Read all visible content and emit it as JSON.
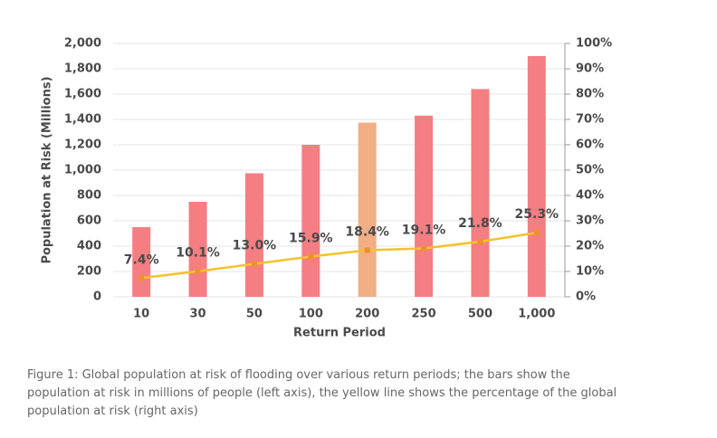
{
  "chart_data": {
    "type": "bar",
    "categories": [
      "10",
      "30",
      "50",
      "100",
      "200",
      "250",
      "500",
      "1,000"
    ],
    "series": [
      {
        "type": "bar",
        "values": [
          550,
          750,
          975,
          1200,
          1375,
          1430,
          1640,
          1900
        ],
        "colors": [
          "#f57e82",
          "#f57e82",
          "#f57e82",
          "#f57e82",
          "#f2ae84",
          "#f57e82",
          "#f57e82",
          "#f57e82"
        ]
      },
      {
        "type": "line",
        "axis": "y2",
        "values": [
          7.4,
          10.1,
          13.0,
          15.9,
          18.4,
          19.1,
          21.8,
          25.3
        ],
        "value_labels": [
          "7.4%",
          "10.1%",
          "13.0%",
          "15.9%",
          "18.4%",
          "19.1%",
          "21.8%",
          "25.3%"
        ],
        "color": "#f5c22c",
        "marker_color": "#f0902a"
      }
    ],
    "ylabel": "Population at Risk (Millions)",
    "xlabel": "Return Period",
    "ylim": [
      0,
      2000
    ],
    "yticks": [
      0,
      200,
      400,
      600,
      800,
      {
        "value": 1000,
        "label": "1,000"
      },
      {
        "value": 1200,
        "label": "1,200"
      },
      {
        "value": 1400,
        "label": "1,400"
      },
      {
        "value": 1600,
        "label": "1,600"
      },
      {
        "value": 1800,
        "label": "1,800"
      },
      {
        "value": 2000,
        "label": "2,000"
      }
    ],
    "y2lim": [
      0,
      100
    ],
    "y2ticks": [
      {
        "value": 0,
        "label": "0%"
      },
      {
        "value": 10,
        "label": "10%"
      },
      {
        "value": 20,
        "label": "20%"
      },
      {
        "value": 30,
        "label": "30%"
      },
      {
        "value": 40,
        "label": "40%"
      },
      {
        "value": 50,
        "label": "50%"
      },
      {
        "value": 60,
        "label": "60%"
      },
      {
        "value": 70,
        "label": "70%"
      },
      {
        "value": 80,
        "label": "80%"
      },
      {
        "value": 90,
        "label": "90%"
      },
      {
        "value": 100,
        "label": "100%"
      }
    ],
    "grid": true
  },
  "caption": "Figure 1: Global population at risk of flooding over various return periods; the bars show the population at risk in millions of people (left axis), the yellow line shows the percentage of the global population at risk (right axis)"
}
